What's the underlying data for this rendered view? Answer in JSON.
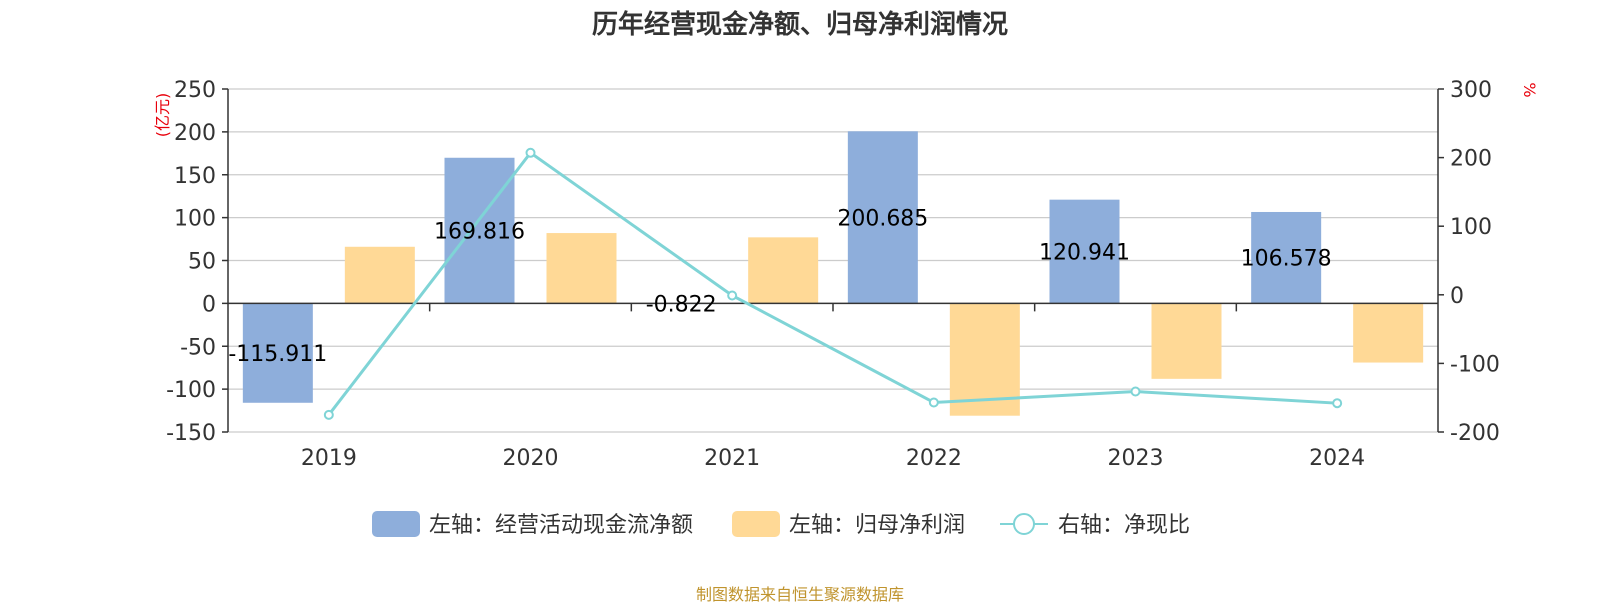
{
  "source_note": "制图数据来自恒生聚源数据库",
  "chart_data": {
    "type": "bar",
    "title": "历年经营现金净额、归母净利润情况",
    "categories": [
      "2019",
      "2020",
      "2021",
      "2022",
      "2023",
      "2024"
    ],
    "left_axis": {
      "unit": "(亿元)",
      "ylim": [
        -150,
        250
      ],
      "ticks": [
        250,
        200,
        150,
        100,
        50,
        0,
        -50,
        -100,
        -150
      ]
    },
    "right_axis": {
      "unit": "%",
      "ylim": [
        -200,
        300
      ],
      "ticks": [
        300,
        200,
        100,
        0,
        -100,
        -200
      ]
    },
    "series": [
      {
        "name": "左轴：经营活动现金流净额",
        "type": "bar",
        "axis": "left",
        "color": "#8eaedb",
        "values": [
          -115.911,
          169.816,
          -0.822,
          200.685,
          120.941,
          106.578
        ],
        "labels": [
          "-115.911",
          "169.816",
          "-0.822",
          "200.685",
          "120.941",
          "106.578"
        ]
      },
      {
        "name": "左轴：归母净利润",
        "type": "bar",
        "axis": "left",
        "color": "#ffd996",
        "values": [
          66,
          82,
          77,
          -131,
          -88,
          -69
        ]
      },
      {
        "name": "右轴：净现比",
        "type": "line",
        "axis": "right",
        "color": "#7fd4d6",
        "values": [
          -175,
          207,
          -1,
          -157,
          -141,
          -158
        ]
      }
    ],
    "grid": true,
    "legend_position": "bottom"
  }
}
